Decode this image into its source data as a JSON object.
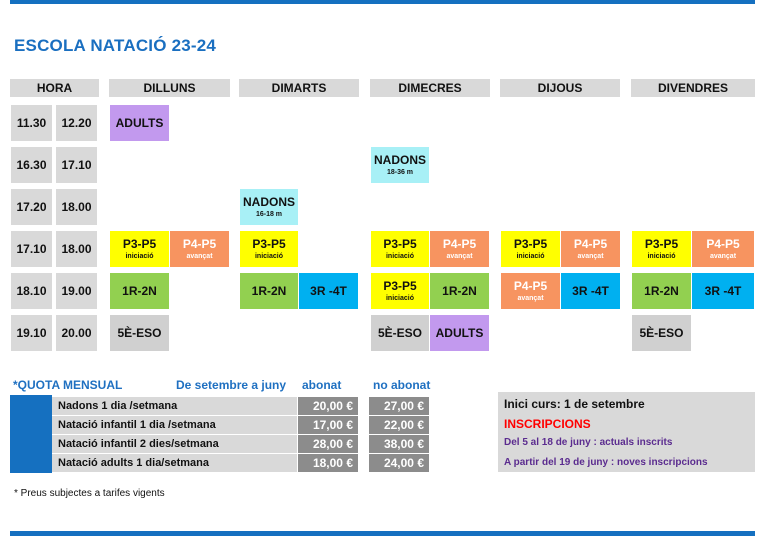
{
  "title": "ESCOLA NATACIÓ 23-24",
  "headers": {
    "hora": "HORA",
    "dilluns": "DILLUNS",
    "dimarts": "DIMARTS",
    "dimecres": "DIMECRES",
    "dijous": "DIJOUS",
    "divendres": "DIVENDRES"
  },
  "times": [
    {
      "start": "11.30",
      "end": "12.20"
    },
    {
      "start": "16.30",
      "end": "17.10"
    },
    {
      "start": "17.20",
      "end": "18.00"
    },
    {
      "start": "17.10",
      "end": "18.00"
    },
    {
      "start": "18.10",
      "end": "19.00"
    },
    {
      "start": "19.10",
      "end": "20.00"
    }
  ],
  "classes": {
    "r1_dil": {
      "label": "ADULTS"
    },
    "r2_dim": {
      "label": "NADONS",
      "sub": "18-36 m"
    },
    "r3_dma": {
      "label": "NADONS",
      "sub": "16-18 m"
    },
    "r4_dil_a": {
      "label": "P3-P5",
      "sub": "iniciació"
    },
    "r4_dil_b": {
      "label": "P4-P5",
      "sub": "avançat"
    },
    "r4_dma_a": {
      "label": "P3-P5",
      "sub": "iniciació"
    },
    "r4_dim_a": {
      "label": "P3-P5",
      "sub": "iniciació"
    },
    "r4_dim_b": {
      "label": "P4-P5",
      "sub": "avançat"
    },
    "r4_dij_a": {
      "label": "P3-P5",
      "sub": "iniciació"
    },
    "r4_dij_b": {
      "label": "P4-P5",
      "sub": "avançat"
    },
    "r4_div_a": {
      "label": "P3-P5",
      "sub": "iniciació"
    },
    "r4_div_b": {
      "label": "P4-P5",
      "sub": "avançat"
    },
    "r5_dil_a": {
      "label": "1R-2N"
    },
    "r5_dma_a": {
      "label": "1R-2N"
    },
    "r5_dma_b": {
      "label": "3R -4T"
    },
    "r5_dim_a": {
      "label": "P3-P5",
      "sub": "iniciació"
    },
    "r5_dim_b": {
      "label": "1R-2N"
    },
    "r5_dij_a": {
      "label": "P4-P5",
      "sub": "avançat"
    },
    "r5_dij_b": {
      "label": "3R -4T"
    },
    "r5_div_a": {
      "label": "1R-2N"
    },
    "r5_div_b": {
      "label": "3R -4T"
    },
    "r6_dil_a": {
      "label": "5È-ESO"
    },
    "r6_dim_a": {
      "label": "5È-ESO"
    },
    "r6_dim_b": {
      "label": "ADULTS"
    },
    "r6_div_a": {
      "label": "5È-ESO"
    }
  },
  "fees": {
    "quota_label": "*QUOTA MENSUAL",
    "period_label": "De setembre a juny",
    "abonat_label": "abonat",
    "no_abonat_label": "no abonat",
    "rows": [
      {
        "name": "Nadons 1 dia /setmana",
        "abonat": "20,00 €",
        "no_abonat": "27,00 €"
      },
      {
        "name": "Natació infantil 1 dia /setmana",
        "abonat": "17,00 €",
        "no_abonat": "22,00 €"
      },
      {
        "name": "Natació infantil 2 dies/setmana",
        "abonat": "28,00 €",
        "no_abonat": "38,00 €"
      },
      {
        "name": "Natació adults 1 dia/setmana",
        "abonat": "18,00 €",
        "no_abonat": "24,00 €"
      }
    ]
  },
  "info": {
    "start": "Inici curs:  1 de setembre",
    "inscripcions": "INSCRIPCIONS",
    "line1": "Del 5  al 18 de juny : actuals inscrits",
    "line2": "A partir del 19 de juny : noves inscripcions"
  },
  "footnote": "* Preus subjectes a tarifes vigents",
  "colors": {
    "brand_blue": "#1570c0",
    "purple": "#c299ee",
    "cyan": "#a8f0f6",
    "yellow": "#ffff00",
    "orange": "#f79460",
    "green": "#92d050",
    "blue": "#00b0f0",
    "gray": "#d0d0d0",
    "red": "#ff0000",
    "info_purple": "#5b2c8f"
  }
}
